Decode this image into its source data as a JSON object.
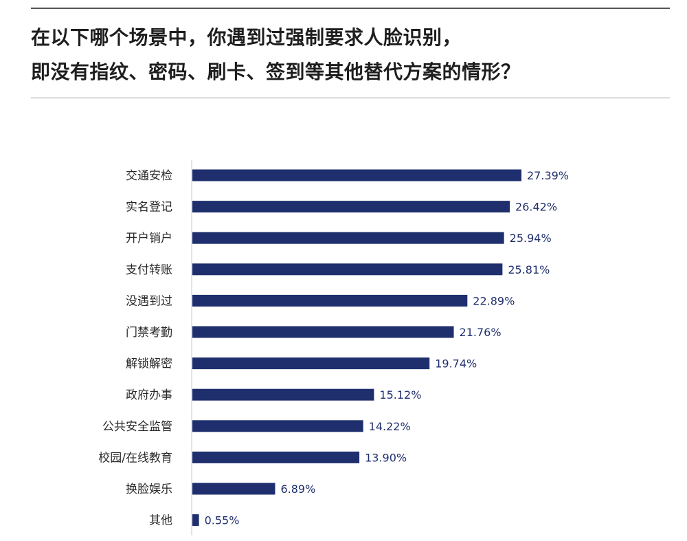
{
  "title": {
    "line1": "在以下哪个场景中，你遇到过强制要求人脸识别，",
    "line2": "即没有指纹、密码、刷卡、签到等其他替代方案的情形？"
  },
  "colors": {
    "bar": "#1f2f6e",
    "axis": "#c8c8c8",
    "value_text": "#1f2f6e"
  },
  "chart_data": {
    "type": "bar",
    "orientation": "horizontal",
    "categories": [
      "交通安检",
      "实名登记",
      "开户销户",
      "支付转账",
      "没遇到过",
      "门禁考勤",
      "解锁解密",
      "政府办事",
      "公共安全监管",
      "校园/在线教育",
      "换脸娱乐",
      "其他"
    ],
    "values": [
      27.39,
      26.42,
      25.94,
      25.81,
      22.89,
      21.76,
      19.74,
      15.12,
      14.22,
      13.9,
      6.89,
      0.55
    ],
    "value_labels": [
      "27.39%",
      "26.42%",
      "25.94%",
      "25.81%",
      "22.89%",
      "21.76%",
      "19.74%",
      "15.12%",
      "14.22%",
      "13.90%",
      "6.89%",
      "0.55%"
    ],
    "xlim": [
      0,
      30
    ],
    "grid": false,
    "legend": "none"
  }
}
